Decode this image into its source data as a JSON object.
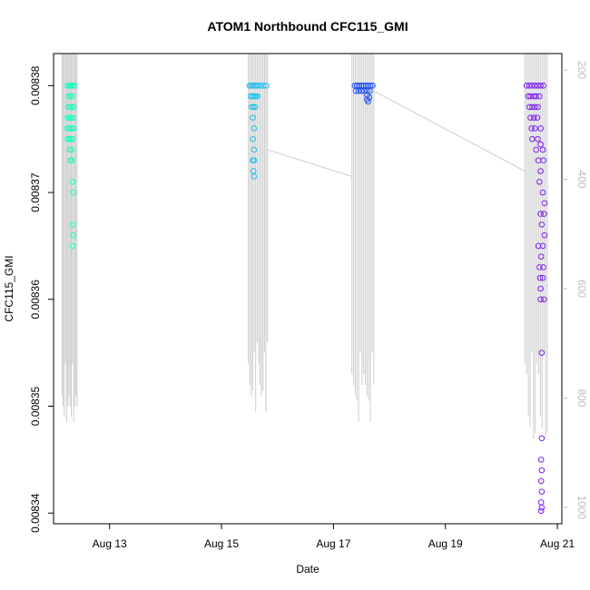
{
  "chart_data": {
    "type": "scatter",
    "title": "ATOM1 Northbound CFC115_GMI",
    "xlabel": "Date",
    "ylabel": "CFC115_GMI",
    "x_ticks": [
      "Aug 13",
      "Aug 15",
      "Aug 17",
      "Aug 19",
      "Aug 21"
    ],
    "x_tick_days": [
      13,
      15,
      17,
      19,
      21
    ],
    "xlim_days": [
      12.0,
      21.08
    ],
    "y_ticks": [
      "0.00834",
      "0.00835",
      "0.00836",
      "0.00837",
      "0.00838"
    ],
    "y_tick_values": [
      0.00834,
      0.00835,
      0.00836,
      0.00837,
      0.00838
    ],
    "ylim": [
      0.008339,
      0.008383
    ],
    "right_axis": {
      "ticks": [
        "200",
        "400",
        "600",
        "800",
        "1000"
      ],
      "tick_values": [
        200,
        400,
        600,
        800,
        1000
      ],
      "ylim": [
        170,
        1030
      ],
      "color": "#bdbdbd"
    },
    "grid": false,
    "series": [
      {
        "color": "#1dfcc0",
        "points": [
          [
            12.25,
            0.00838
          ],
          [
            12.28,
            0.00838
          ],
          [
            12.3,
            0.00838
          ],
          [
            12.32,
            0.00838
          ],
          [
            12.35,
            0.00838
          ],
          [
            12.38,
            0.00838
          ],
          [
            12.27,
            0.008379
          ],
          [
            12.3,
            0.008379
          ],
          [
            12.33,
            0.008379
          ],
          [
            12.26,
            0.008378
          ],
          [
            12.29,
            0.008378
          ],
          [
            12.32,
            0.008378
          ],
          [
            12.35,
            0.008378
          ],
          [
            12.25,
            0.008377
          ],
          [
            12.28,
            0.008377
          ],
          [
            12.31,
            0.008377
          ],
          [
            12.34,
            0.008377
          ],
          [
            12.24,
            0.008376
          ],
          [
            12.27,
            0.008376
          ],
          [
            12.3,
            0.008376
          ],
          [
            12.33,
            0.008376
          ],
          [
            12.36,
            0.008376
          ],
          [
            12.25,
            0.008375
          ],
          [
            12.28,
            0.008375
          ],
          [
            12.31,
            0.008375
          ],
          [
            12.34,
            0.008375
          ],
          [
            12.29,
            0.008374
          ],
          [
            12.32,
            0.008374
          ],
          [
            12.3,
            0.008373
          ],
          [
            12.33,
            0.008373
          ],
          [
            12.34,
            0.008371
          ],
          [
            12.35,
            0.00837
          ],
          [
            12.34,
            0.008367
          ],
          [
            12.35,
            0.008366
          ],
          [
            12.34,
            0.008365
          ]
        ]
      },
      {
        "color": "#1fbff0",
        "points": [
          [
            15.5,
            0.00838
          ],
          [
            15.53,
            0.00838
          ],
          [
            15.56,
            0.00838
          ],
          [
            15.59,
            0.00838
          ],
          [
            15.62,
            0.00838
          ],
          [
            15.65,
            0.00838
          ],
          [
            15.7,
            0.00838
          ],
          [
            15.75,
            0.00838
          ],
          [
            15.8,
            0.00838
          ],
          [
            15.52,
            0.008379
          ],
          [
            15.55,
            0.008379
          ],
          [
            15.58,
            0.008379
          ],
          [
            15.61,
            0.008379
          ],
          [
            15.64,
            0.008379
          ],
          [
            15.54,
            0.008378
          ],
          [
            15.57,
            0.008378
          ],
          [
            15.6,
            0.008378
          ],
          [
            15.56,
            0.008377
          ],
          [
            15.58,
            0.008376
          ],
          [
            15.56,
            0.008375
          ],
          [
            15.58,
            0.008374
          ],
          [
            15.56,
            0.008373
          ],
          [
            15.58,
            0.008373
          ],
          [
            15.57,
            0.008372
          ],
          [
            15.58,
            0.0083715
          ]
        ]
      },
      {
        "color": "#1f4ff0",
        "points": [
          [
            17.38,
            0.00838
          ],
          [
            17.42,
            0.00838
          ],
          [
            17.46,
            0.00838
          ],
          [
            17.5,
            0.00838
          ],
          [
            17.54,
            0.00838
          ],
          [
            17.58,
            0.00838
          ],
          [
            17.62,
            0.00838
          ],
          [
            17.66,
            0.00838
          ],
          [
            17.7,
            0.00838
          ],
          [
            17.4,
            0.0083795
          ],
          [
            17.45,
            0.0083795
          ],
          [
            17.5,
            0.0083795
          ],
          [
            17.55,
            0.0083795
          ],
          [
            17.6,
            0.0083795
          ],
          [
            17.65,
            0.0083795
          ],
          [
            17.6,
            0.0083791
          ],
          [
            17.64,
            0.0083789
          ],
          [
            17.62,
            0.0083785
          ],
          [
            17.6,
            0.0083787
          ]
        ]
      },
      {
        "color": "#7f1df0",
        "points": [
          [
            20.45,
            0.00838
          ],
          [
            20.5,
            0.00838
          ],
          [
            20.55,
            0.00838
          ],
          [
            20.6,
            0.00838
          ],
          [
            20.65,
            0.00838
          ],
          [
            20.7,
            0.00838
          ],
          [
            20.75,
            0.00838
          ],
          [
            20.48,
            0.008379
          ],
          [
            20.52,
            0.008379
          ],
          [
            20.58,
            0.008379
          ],
          [
            20.62,
            0.008379
          ],
          [
            20.68,
            0.008379
          ],
          [
            20.5,
            0.008378
          ],
          [
            20.55,
            0.008378
          ],
          [
            20.6,
            0.008378
          ],
          [
            20.65,
            0.008378
          ],
          [
            20.52,
            0.008377
          ],
          [
            20.58,
            0.008377
          ],
          [
            20.64,
            0.008377
          ],
          [
            20.54,
            0.008376
          ],
          [
            20.6,
            0.008376
          ],
          [
            20.7,
            0.008376
          ],
          [
            20.55,
            0.008375
          ],
          [
            20.65,
            0.008375
          ],
          [
            20.7,
            0.0083745
          ],
          [
            20.62,
            0.008374
          ],
          [
            20.74,
            0.008374
          ],
          [
            20.66,
            0.008373
          ],
          [
            20.75,
            0.008373
          ],
          [
            20.7,
            0.008372
          ],
          [
            20.68,
            0.008371
          ],
          [
            20.74,
            0.00837
          ],
          [
            20.77,
            0.008369
          ],
          [
            20.7,
            0.008368
          ],
          [
            20.76,
            0.008368
          ],
          [
            20.72,
            0.008367
          ],
          [
            20.77,
            0.008366
          ],
          [
            20.66,
            0.008365
          ],
          [
            20.74,
            0.008365
          ],
          [
            20.71,
            0.008364
          ],
          [
            20.68,
            0.008363
          ],
          [
            20.75,
            0.008363
          ],
          [
            20.69,
            0.008362
          ],
          [
            20.74,
            0.008362
          ],
          [
            20.7,
            0.008361
          ],
          [
            20.76,
            0.00836
          ],
          [
            20.7,
            0.00836
          ],
          [
            20.72,
            0.008355
          ],
          [
            20.72,
            0.008347
          ],
          [
            20.71,
            0.008345
          ],
          [
            20.72,
            0.008344
          ],
          [
            20.71,
            0.008343
          ],
          [
            20.72,
            0.008342
          ],
          [
            20.71,
            0.008341
          ],
          [
            20.72,
            0.0083405
          ],
          [
            20.71,
            0.0083402
          ]
        ]
      }
    ],
    "line_color": "#cccccc",
    "connector_lines": [
      {
        "x": [
          15.82,
          17.33
        ],
        "y": [
          0.008374,
          0.0083715
        ]
      },
      {
        "x": [
          17.72,
          20.42
        ],
        "y": [
          0.0083795,
          0.008372
        ]
      }
    ],
    "profile_groups": [
      {
        "x_range": [
          12.15,
          12.42
        ],
        "top_y": 0.008383,
        "bottom_y": [
          0.008351,
          0.00835,
          0.008349,
          0.008354,
          0.0083485,
          0.00835
        ]
      },
      {
        "x_range": [
          15.48,
          15.82
        ],
        "top_y": 0.008383,
        "bottom_y": [
          0.008354,
          0.008352,
          0.008351,
          0.0083515,
          0.008355,
          0.0083495,
          0.008356
        ]
      },
      {
        "x_range": [
          17.33,
          17.72
        ],
        "top_y": 0.008383,
        "bottom_y": [
          0.008353,
          0.008352,
          0.008351,
          0.0083505,
          0.0083485,
          0.008355,
          0.008352
        ]
      },
      {
        "x_range": [
          20.42,
          20.82
        ],
        "top_y": 0.008383,
        "bottom_y": [
          0.008354,
          0.008353,
          0.008349,
          0.008348,
          0.008355,
          0.008347,
          0.0083475
        ]
      }
    ]
  }
}
